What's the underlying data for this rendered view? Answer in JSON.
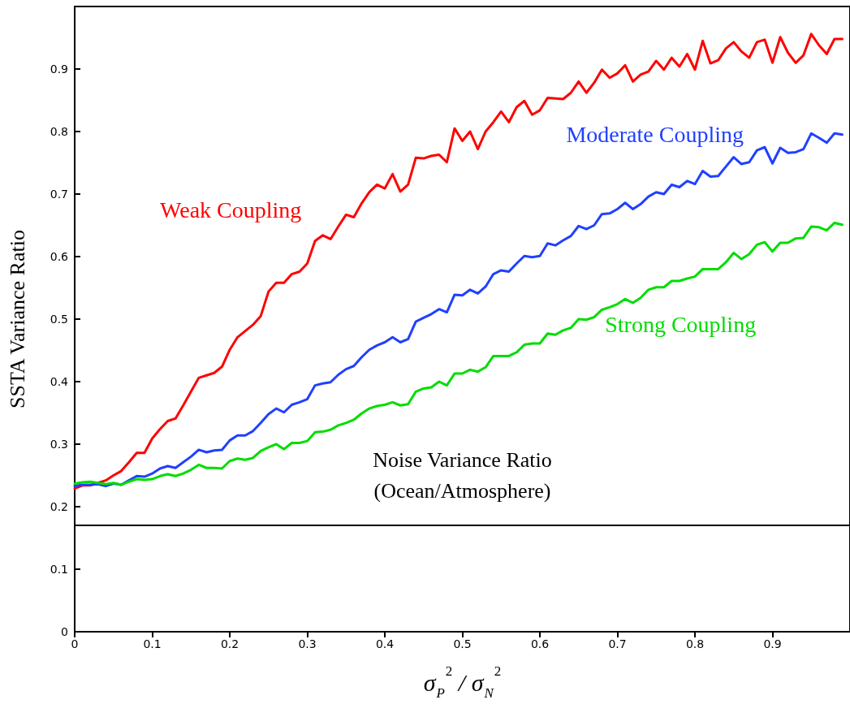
{
  "chart_data": {
    "type": "line",
    "xlabel": "σ$_{P}$$^{2}$ / σ$_{N}$$^{2}$",
    "ylabel": "SSTA Variance Ratio",
    "x": [
      0,
      0.01,
      0.02,
      0.03,
      0.04,
      0.05,
      0.06,
      0.07,
      0.08,
      0.09,
      0.1,
      0.11,
      0.12,
      0.13,
      0.14,
      0.15,
      0.16,
      0.17,
      0.18,
      0.19,
      0.2,
      0.21,
      0.22,
      0.23,
      0.24,
      0.25,
      0.26,
      0.27,
      0.28,
      0.29,
      0.3,
      0.31,
      0.32,
      0.33,
      0.34,
      0.35,
      0.36,
      0.37,
      0.38,
      0.39,
      0.4,
      0.41,
      0.42,
      0.43,
      0.44,
      0.45,
      0.46,
      0.47,
      0.48,
      0.49,
      0.5,
      0.51,
      0.52,
      0.53,
      0.54,
      0.55,
      0.56,
      0.57,
      0.58,
      0.59,
      0.6,
      0.61,
      0.62,
      0.63,
      0.64,
      0.65,
      0.66,
      0.67,
      0.68,
      0.69,
      0.7,
      0.71,
      0.72,
      0.73,
      0.74,
      0.75,
      0.76,
      0.77,
      0.78,
      0.79,
      0.8,
      0.81,
      0.82,
      0.83,
      0.84,
      0.85,
      0.86,
      0.87,
      0.88,
      0.89,
      0.9,
      0.91,
      0.92,
      0.93,
      0.94,
      0.95,
      0.96,
      0.97,
      0.98,
      0.99
    ],
    "series": [
      {
        "name": "Weak Coupling",
        "color": "#ff0000",
        "values": [
          0.229,
          0.234,
          0.234,
          0.238,
          0.242,
          0.25,
          0.257,
          0.271,
          0.286,
          0.286,
          0.309,
          0.324,
          0.337,
          0.341,
          0.362,
          0.384,
          0.406,
          0.41,
          0.414,
          0.424,
          0.451,
          0.471,
          0.481,
          0.491,
          0.505,
          0.544,
          0.558,
          0.558,
          0.572,
          0.576,
          0.589,
          0.625,
          0.634,
          0.628,
          0.648,
          0.667,
          0.663,
          0.685,
          0.703,
          0.715,
          0.709,
          0.732,
          0.704,
          0.715,
          0.758,
          0.757,
          0.761,
          0.763,
          0.751,
          0.805,
          0.785,
          0.8,
          0.772,
          0.8,
          0.815,
          0.832,
          0.815,
          0.839,
          0.849,
          0.827,
          0.834,
          0.854,
          0.853,
          0.852,
          0.862,
          0.88,
          0.862,
          0.878,
          0.899,
          0.886,
          0.893,
          0.906,
          0.88,
          0.891,
          0.896,
          0.913,
          0.899,
          0.918,
          0.904,
          0.924,
          0.899,
          0.945,
          0.909,
          0.914,
          0.933,
          0.943,
          0.928,
          0.918,
          0.943,
          0.947,
          0.91,
          0.951,
          0.926,
          0.91,
          0.922,
          0.956,
          0.938,
          0.924,
          0.948,
          0.948
        ]
      },
      {
        "name": "Moderate Coupling",
        "color": "#2040ff",
        "values": [
          0.233,
          0.235,
          0.235,
          0.236,
          0.233,
          0.237,
          0.235,
          0.242,
          0.249,
          0.248,
          0.253,
          0.261,
          0.265,
          0.262,
          0.271,
          0.28,
          0.291,
          0.287,
          0.29,
          0.291,
          0.306,
          0.314,
          0.314,
          0.321,
          0.334,
          0.348,
          0.357,
          0.351,
          0.363,
          0.367,
          0.372,
          0.394,
          0.397,
          0.399,
          0.411,
          0.42,
          0.425,
          0.439,
          0.451,
          0.458,
          0.463,
          0.471,
          0.463,
          0.468,
          0.496,
          0.502,
          0.508,
          0.516,
          0.511,
          0.539,
          0.538,
          0.547,
          0.541,
          0.552,
          0.572,
          0.578,
          0.576,
          0.589,
          0.601,
          0.599,
          0.601,
          0.621,
          0.618,
          0.626,
          0.633,
          0.649,
          0.644,
          0.65,
          0.668,
          0.669,
          0.676,
          0.686,
          0.676,
          0.684,
          0.696,
          0.703,
          0.7,
          0.715,
          0.711,
          0.721,
          0.716,
          0.737,
          0.728,
          0.729,
          0.744,
          0.759,
          0.748,
          0.751,
          0.77,
          0.775,
          0.749,
          0.774,
          0.766,
          0.767,
          0.772,
          0.797,
          0.79,
          0.782,
          0.797,
          0.795
        ]
      },
      {
        "name": "Strong Coupling",
        "color": "#00dd00",
        "values": [
          0.237,
          0.239,
          0.24,
          0.238,
          0.236,
          0.238,
          0.235,
          0.24,
          0.244,
          0.243,
          0.244,
          0.249,
          0.252,
          0.249,
          0.253,
          0.259,
          0.267,
          0.262,
          0.262,
          0.261,
          0.273,
          0.277,
          0.275,
          0.278,
          0.289,
          0.295,
          0.3,
          0.292,
          0.302,
          0.302,
          0.305,
          0.319,
          0.32,
          0.323,
          0.33,
          0.334,
          0.339,
          0.349,
          0.357,
          0.361,
          0.363,
          0.367,
          0.362,
          0.364,
          0.384,
          0.389,
          0.391,
          0.4,
          0.394,
          0.413,
          0.413,
          0.419,
          0.416,
          0.423,
          0.441,
          0.441,
          0.441,
          0.447,
          0.459,
          0.461,
          0.461,
          0.477,
          0.475,
          0.482,
          0.486,
          0.5,
          0.499,
          0.503,
          0.515,
          0.519,
          0.524,
          0.532,
          0.526,
          0.534,
          0.547,
          0.551,
          0.551,
          0.561,
          0.561,
          0.565,
          0.568,
          0.58,
          0.58,
          0.58,
          0.591,
          0.606,
          0.596,
          0.604,
          0.619,
          0.623,
          0.608,
          0.622,
          0.622,
          0.629,
          0.63,
          0.648,
          0.647,
          0.642,
          0.654,
          0.651
        ]
      }
    ],
    "ref_lines": [
      {
        "axis": "y",
        "value": 0.167,
        "label": "Noise Variance Ratio\n(Ocean/Atmosphere)",
        "color": "#000000"
      }
    ],
    "xlim": [
      0,
      1
    ],
    "xticks": [
      0,
      0.1,
      0.2,
      0.3,
      0.4,
      0.5,
      0.6,
      0.7,
      0.8,
      0.9
    ],
    "ylim": [
      0,
      1
    ],
    "yticks": [
      0,
      0.1,
      0.2,
      0.3,
      0.4,
      0.5,
      0.6,
      0.7,
      0.8,
      0.9
    ]
  }
}
